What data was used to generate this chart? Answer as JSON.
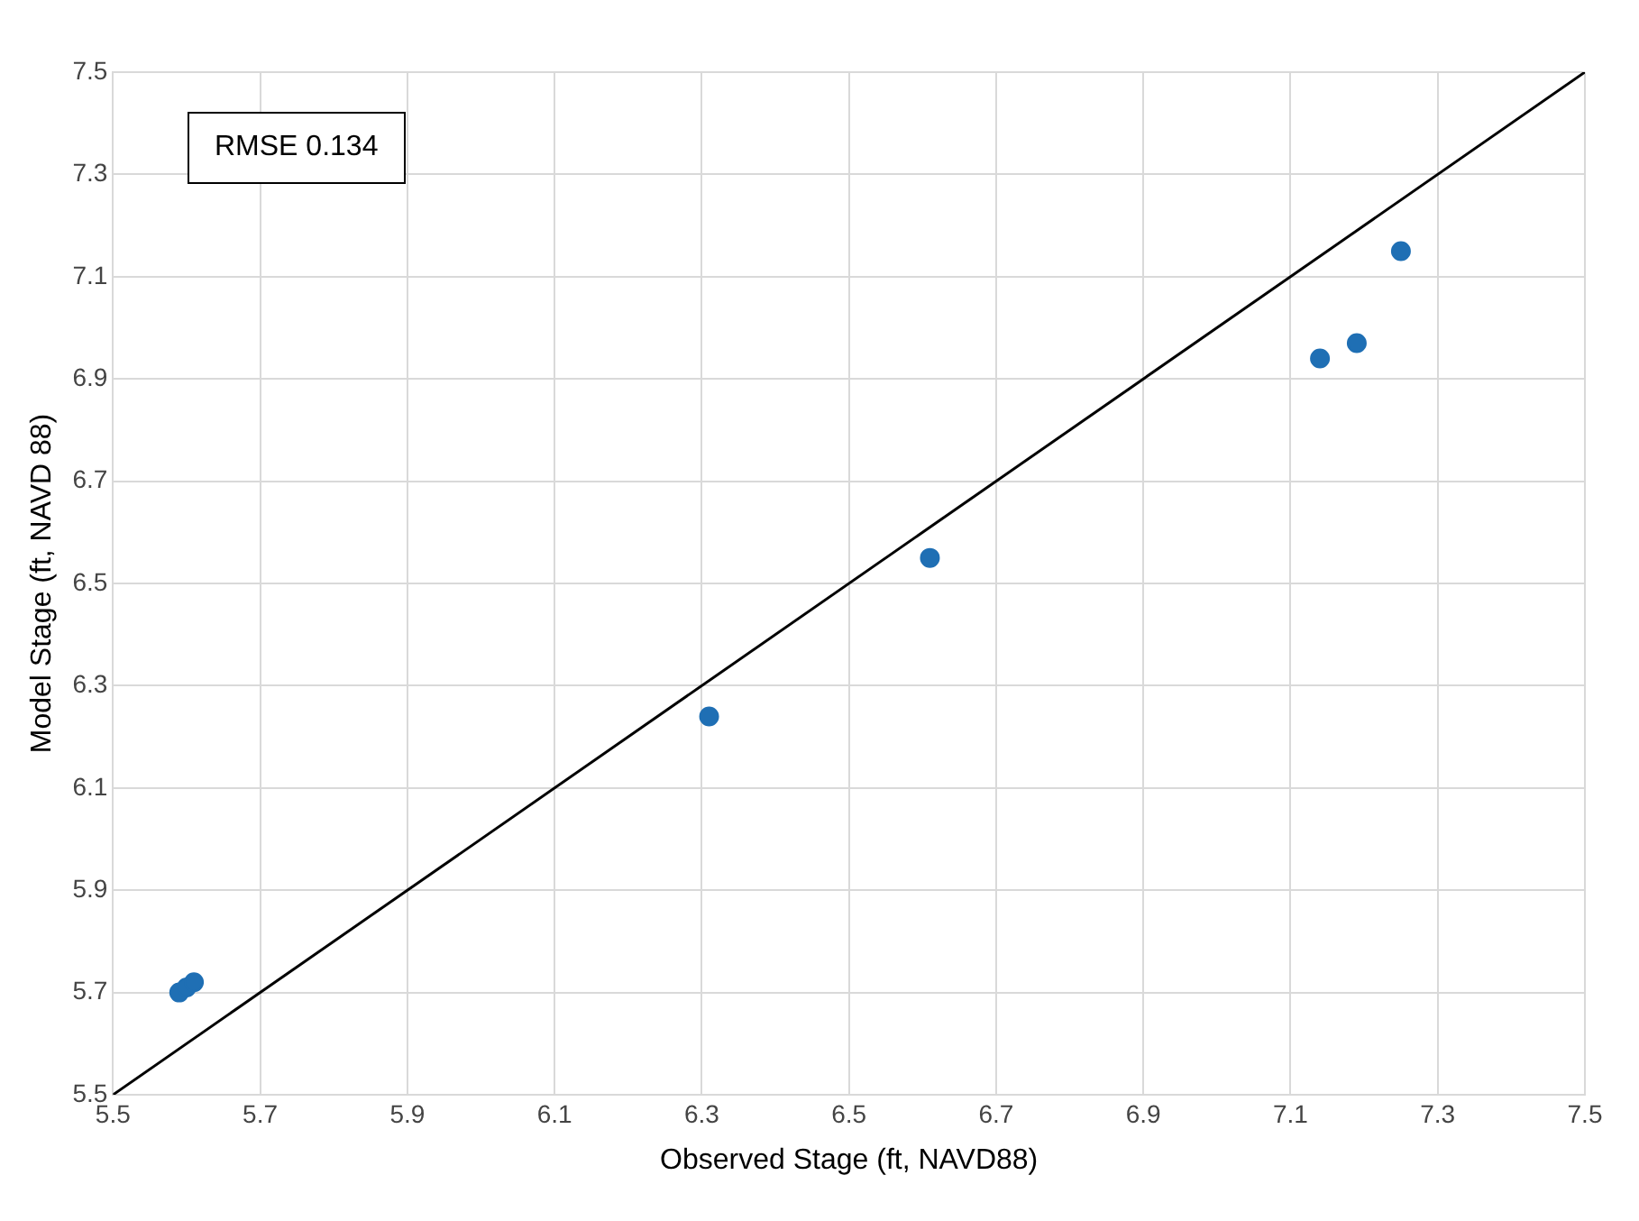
{
  "chart_data": {
    "type": "scatter",
    "xlabel": "Observed Stage (ft, NAVD88)",
    "ylabel": "Model Stage (ft, NAVD 88)",
    "annotations": [
      "RMSE 0.134"
    ],
    "series": [
      {
        "color": "#1f6fb4",
        "marker": "circle",
        "x": [
          5.59,
          5.6,
          5.61,
          6.31,
          6.61,
          7.14,
          7.19,
          7.25
        ],
        "values": [
          5.7,
          5.71,
          5.72,
          6.24,
          6.55,
          6.94,
          6.97,
          7.15
        ]
      },
      {
        "type": "line",
        "marker": "none",
        "color": "#000000",
        "x": [
          5.5,
          7.5
        ],
        "values": [
          5.5,
          7.5
        ]
      }
    ],
    "xlim": [
      5.5,
      7.5
    ],
    "xticks": [
      5.5,
      5.7,
      5.9,
      6.1,
      6.3,
      6.5,
      6.7,
      6.9,
      7.1,
      7.3,
      7.5
    ],
    "ylim": [
      5.5,
      7.5
    ],
    "yticks": [
      5.5,
      5.7,
      5.9,
      6.1,
      6.3,
      6.5,
      6.7,
      6.9,
      7.1,
      7.3,
      7.5
    ],
    "grid": true,
    "legend": false
  }
}
